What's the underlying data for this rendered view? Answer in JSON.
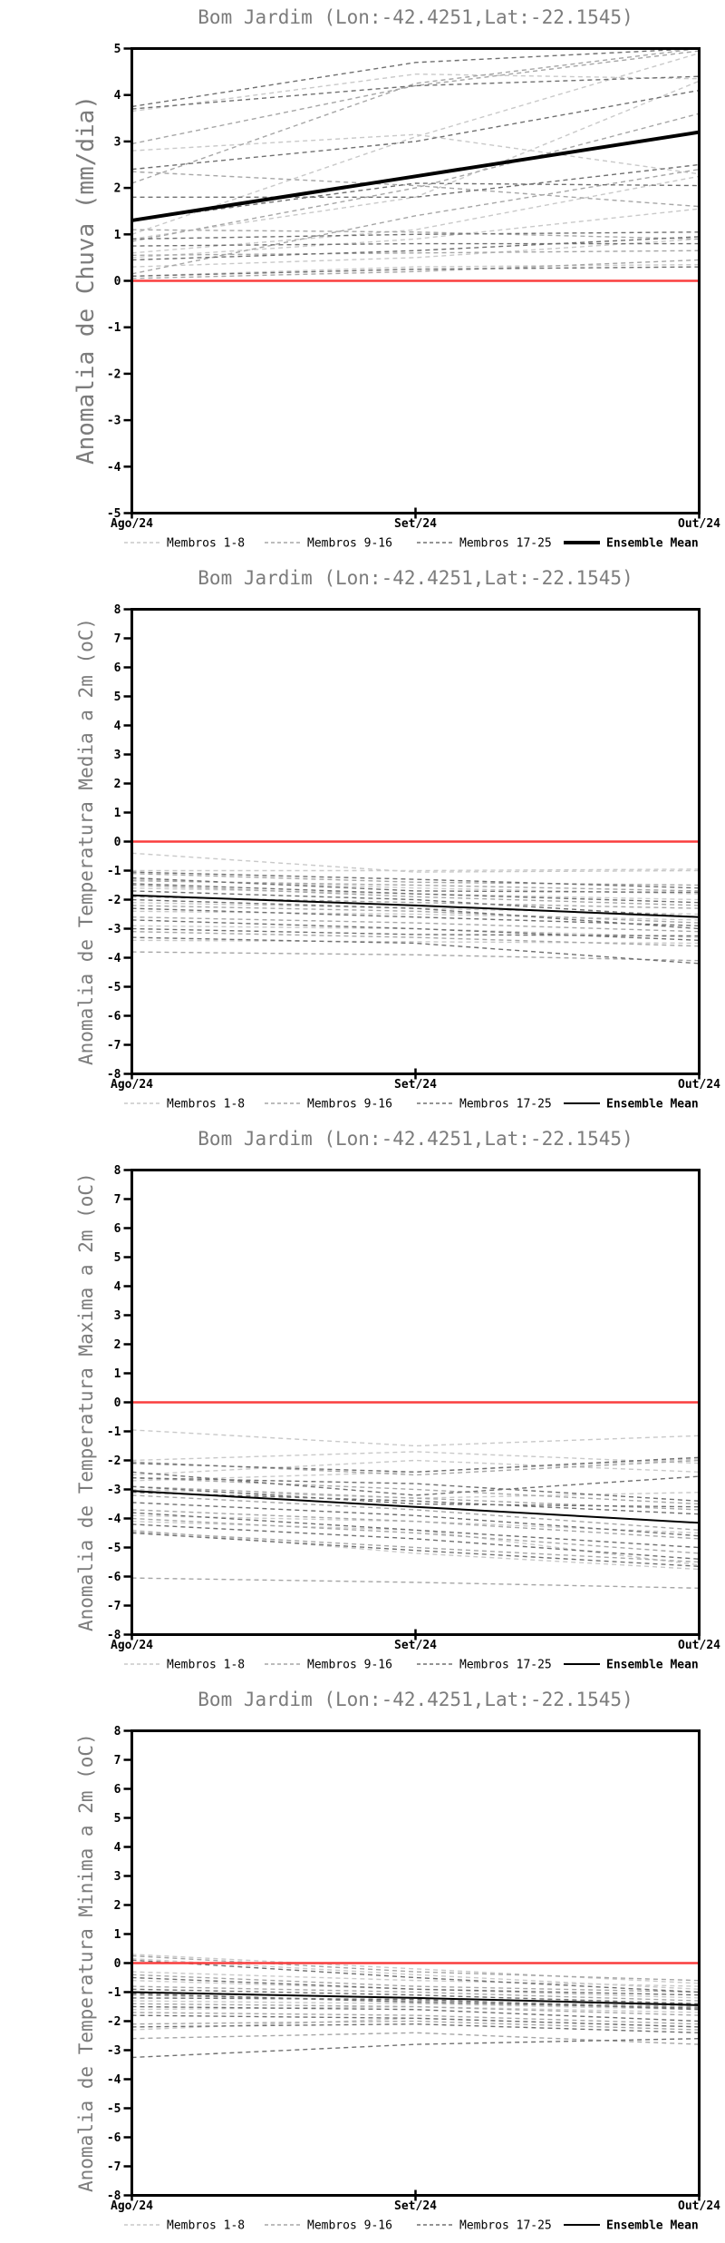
{
  "page": {
    "background": "#ffffff"
  },
  "colors": {
    "axis": "#000000",
    "title_gray": "#7c7c7c",
    "zero_line_red": "#fa3e3e",
    "members_1_8": "#c9c9c9",
    "members_9_16": "#a6a6a6",
    "members_17_25": "#707070",
    "ensemble_mean": "#000000"
  },
  "chart_data": [
    {
      "type": "line",
      "title": "Bom Jardim (Lon:-42.4251,Lat:-22.1545)",
      "ylabel": "Anomalia de Chuva (mm/dia)",
      "xlabel": "",
      "x_categories": [
        "Ago/24",
        "Set/24",
        "Out/24"
      ],
      "ylim": [
        -5,
        5
      ],
      "ytick_step": 1,
      "zero_line": 0,
      "grid": false,
      "legend_position": "bottom",
      "legend": [
        "Membros 1-8",
        "Membros 9-16",
        "Membros 17-25",
        "Ensemble Mean"
      ],
      "groups": [
        {
          "name": "Membros 1-8",
          "color": "#c9c9c9",
          "members": [
            [
              3.65,
              4.45,
              4.35
            ],
            [
              2.8,
              3.15,
              2.3
            ],
            [
              1.0,
              3.1,
              4.9
            ],
            [
              0.9,
              1.8,
              4.3
            ],
            [
              0.6,
              1.1,
              2.25
            ],
            [
              0.5,
              0.9,
              1.55
            ],
            [
              0.3,
              0.5,
              0.9
            ],
            [
              0.1,
              0.3,
              0.35
            ]
          ]
        },
        {
          "name": "Membros 9-16",
          "color": "#a6a6a6",
          "members": [
            [
              2.95,
              4.2,
              4.95
            ],
            [
              2.35,
              2.05,
              1.6
            ],
            [
              2.1,
              4.25,
              5.0
            ],
            [
              1.1,
              1.05,
              0.9
            ],
            [
              0.85,
              2.0,
              3.6
            ],
            [
              0.55,
              0.6,
              0.65
            ],
            [
              0.15,
              1.4,
              2.4
            ],
            [
              0.05,
              0.2,
              0.45
            ]
          ]
        },
        {
          "name": "Membros 17-25",
          "color": "#707070",
          "members": [
            [
              3.75,
              4.7,
              5.0
            ],
            [
              3.7,
              4.2,
              4.4
            ],
            [
              2.4,
              3.0,
              4.1
            ],
            [
              1.8,
              1.8,
              2.5
            ],
            [
              1.3,
              2.1,
              2.05
            ],
            [
              0.9,
              1.0,
              1.05
            ],
            [
              0.75,
              0.8,
              0.8
            ],
            [
              0.45,
              0.65,
              0.95
            ],
            [
              0.1,
              0.25,
              0.3
            ]
          ]
        }
      ],
      "ensemble_mean": {
        "name": "Ensemble Mean",
        "color": "#000000",
        "width": 4,
        "values": [
          1.3,
          2.25,
          3.2
        ]
      }
    },
    {
      "type": "line",
      "title": "Bom Jardim (Lon:-42.4251,Lat:-22.1545)",
      "ylabel": "Anomalia de Temperatura Media a 2m (oC)",
      "xlabel": "",
      "x_categories": [
        "Ago/24",
        "Set/24",
        "Out/24"
      ],
      "ylim": [
        -8,
        8
      ],
      "ytick_step": 1,
      "zero_line": 0,
      "grid": false,
      "legend_position": "bottom",
      "legend": [
        "Membros 1-8",
        "Membros 9-16",
        "Membros 17-25",
        "Ensemble Mean"
      ],
      "groups": [
        {
          "name": "Membros 1-8",
          "color": "#c9c9c9",
          "members": [
            [
              -0.4,
              -1.05,
              -1.0
            ],
            [
              -1.0,
              -1.0,
              -0.95
            ],
            [
              -1.3,
              -1.6,
              -1.8
            ],
            [
              -1.6,
              -1.8,
              -2.0
            ],
            [
              -2.1,
              -2.3,
              -2.5
            ],
            [
              -2.4,
              -2.5,
              -2.7
            ],
            [
              -2.9,
              -3.0,
              -3.3
            ],
            [
              -3.4,
              -3.45,
              -3.5
            ]
          ]
        },
        {
          "name": "Membros 9-16",
          "color": "#a6a6a6",
          "members": [
            [
              -1.1,
              -1.4,
              -1.5
            ],
            [
              -1.35,
              -1.5,
              -1.7
            ],
            [
              -1.5,
              -1.9,
              -2.2
            ],
            [
              -1.9,
              -2.1,
              -2.3
            ],
            [
              -2.2,
              -2.4,
              -2.8
            ],
            [
              -2.6,
              -2.8,
              -3.1
            ],
            [
              -3.1,
              -3.3,
              -3.6
            ],
            [
              -3.8,
              -3.9,
              -4.1
            ]
          ]
        },
        {
          "name": "Membros 17-25",
          "color": "#707070",
          "members": [
            [
              -1.05,
              -1.3,
              -1.6
            ],
            [
              -1.25,
              -1.7,
              -1.75
            ],
            [
              -1.45,
              -1.8,
              -2.1
            ],
            [
              -1.7,
              -2.0,
              -2.6
            ],
            [
              -2.0,
              -2.3,
              -3.0
            ],
            [
              -2.3,
              -2.6,
              -2.9
            ],
            [
              -2.7,
              -3.0,
              -3.4
            ],
            [
              -3.0,
              -3.2,
              -3.25
            ],
            [
              -3.3,
              -3.5,
              -4.2
            ]
          ]
        }
      ],
      "ensemble_mean": {
        "name": "Ensemble Mean",
        "color": "#000000",
        "width": 2,
        "values": [
          -1.85,
          -2.2,
          -2.6
        ]
      }
    },
    {
      "type": "line",
      "title": "Bom Jardim (Lon:-42.4251,Lat:-22.1545)",
      "ylabel": "Anomalia de Temperatura Maxima a 2m (oC)",
      "xlabel": "",
      "x_categories": [
        "Ago/24",
        "Set/24",
        "Out/24"
      ],
      "ylim": [
        -8,
        8
      ],
      "ytick_step": 1,
      "zero_line": 0,
      "grid": false,
      "legend_position": "bottom",
      "legend": [
        "Membros 1-8",
        "Membros 9-16",
        "Membros 17-25",
        "Ensemble Mean"
      ],
      "groups": [
        {
          "name": "Membros 1-8",
          "color": "#c9c9c9",
          "members": [
            [
              -0.95,
              -1.5,
              -1.15
            ],
            [
              -2.0,
              -1.7,
              -2.1
            ],
            [
              -2.5,
              -2.0,
              -2.4
            ],
            [
              -2.7,
              -2.4,
              -1.95
            ],
            [
              -3.0,
              -3.3,
              -3.1
            ],
            [
              -3.9,
              -4.1,
              -4.5
            ],
            [
              -4.1,
              -4.4,
              -5.6
            ],
            [
              -4.4,
              -5.2,
              -5.75
            ]
          ]
        },
        {
          "name": "Membros 9-16",
          "color": "#a6a6a6",
          "members": [
            [
              -2.05,
              -2.5,
              -2.0
            ],
            [
              -2.6,
              -3.0,
              -3.5
            ],
            [
              -2.9,
              -3.3,
              -3.7
            ],
            [
              -3.2,
              -3.7,
              -4.4
            ],
            [
              -3.7,
              -4.1,
              -4.7
            ],
            [
              -4.0,
              -4.5,
              -5.2
            ],
            [
              -4.45,
              -5.0,
              -5.5
            ],
            [
              -6.05,
              -6.2,
              -6.4
            ]
          ]
        },
        {
          "name": "Membros 17-25",
          "color": "#707070",
          "members": [
            [
              -2.1,
              -2.4,
              -1.9
            ],
            [
              -2.6,
              -2.8,
              -3.4
            ],
            [
              -2.9,
              -3.5,
              -3.6
            ],
            [
              -3.1,
              -3.4,
              -3.85
            ],
            [
              -3.45,
              -3.9,
              -4.6
            ],
            [
              -3.8,
              -4.4,
              -5.0
            ],
            [
              -4.2,
              -4.7,
              -5.4
            ],
            [
              -4.5,
              -5.1,
              -5.65
            ],
            [
              -2.4,
              -3.2,
              -2.55
            ]
          ]
        }
      ],
      "ensemble_mean": {
        "name": "Ensemble Mean",
        "color": "#000000",
        "width": 2,
        "values": [
          -3.05,
          -3.6,
          -4.15
        ]
      }
    },
    {
      "type": "line",
      "title": "Bom Jardim (Lon:-42.4251,Lat:-22.1545)",
      "ylabel": "Anomalia de Temperatura Minima a 2m (oC)",
      "xlabel": "",
      "x_categories": [
        "Ago/24",
        "Set/24",
        "Out/24"
      ],
      "ylim": [
        -8,
        8
      ],
      "ytick_step": 1,
      "zero_line": 0,
      "grid": false,
      "legend_position": "bottom",
      "legend": [
        "Membros 1-8",
        "Membros 9-16",
        "Membros 17-25",
        "Ensemble Mean"
      ],
      "groups": [
        {
          "name": "Membros 1-8",
          "color": "#c9c9c9",
          "members": [
            [
              0.3,
              -0.2,
              -0.7
            ],
            [
              0.15,
              -0.4,
              -0.9
            ],
            [
              -0.3,
              -0.6,
              -0.8
            ],
            [
              -0.6,
              -0.9,
              -1.2
            ],
            [
              -1.0,
              -1.2,
              -1.4
            ],
            [
              -1.3,
              -1.4,
              -1.6
            ],
            [
              -1.6,
              -1.5,
              -1.7
            ],
            [
              -2.3,
              -1.9,
              -2.2
            ]
          ]
        },
        {
          "name": "Membros 9-16",
          "color": "#a6a6a6",
          "members": [
            [
              0.25,
              -0.3,
              -0.6
            ],
            [
              -0.4,
              -0.8,
              -1.0
            ],
            [
              -0.8,
              -1.0,
              -1.3
            ],
            [
              -1.1,
              -1.3,
              -1.5
            ],
            [
              -1.4,
              -1.5,
              -1.8
            ],
            [
              -1.7,
              -1.8,
              -2.1
            ],
            [
              -2.1,
              -2.0,
              -2.3
            ],
            [
              -2.6,
              -2.4,
              -2.8
            ]
          ]
        },
        {
          "name": "Membros 17-25",
          "color": "#707070",
          "members": [
            [
              0.1,
              -0.5,
              -1.0
            ],
            [
              -0.5,
              -0.9,
              -1.1
            ],
            [
              -0.9,
              -1.1,
              -1.4
            ],
            [
              -1.2,
              -1.25,
              -1.6
            ],
            [
              -1.5,
              -1.6,
              -2.0
            ],
            [
              -1.8,
              -1.9,
              -2.2
            ],
            [
              -2.2,
              -2.1,
              -2.4
            ],
            [
              -3.25,
              -2.8,
              -2.6
            ],
            [
              -1.05,
              -1.35,
              -1.55
            ]
          ]
        }
      ],
      "ensemble_mean": {
        "name": "Ensemble Mean",
        "color": "#000000",
        "width": 2,
        "values": [
          -1.0,
          -1.2,
          -1.45
        ]
      }
    }
  ]
}
